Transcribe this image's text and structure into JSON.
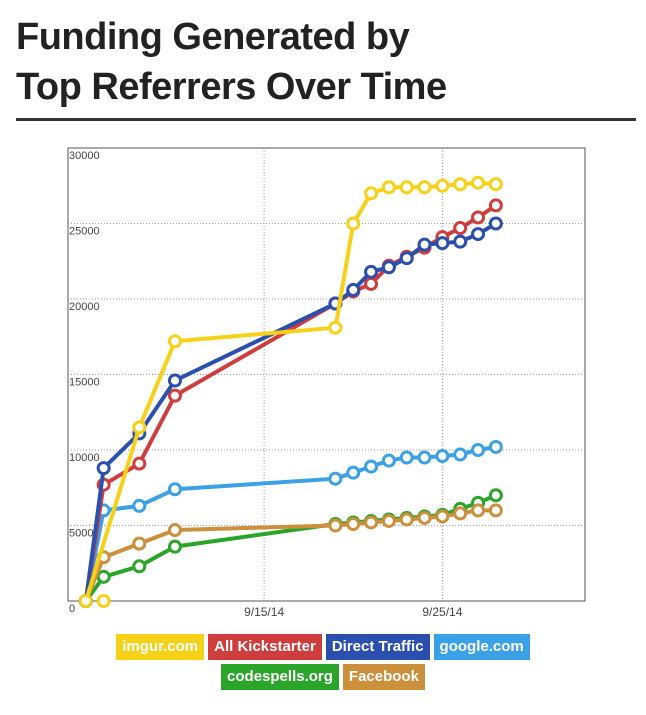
{
  "title_line1": "Funding Generated by",
  "title_line2": "Top Referrers Over Time",
  "chart_data": {
    "type": "line",
    "ylim": [
      0,
      30000
    ],
    "yticks": [
      "0",
      "5000",
      "10000",
      "15000",
      "20000",
      "25000",
      "30000"
    ],
    "xticks": [
      "9/15/14",
      "9/25/14"
    ],
    "x": [
      "9/5/14",
      "9/6/14",
      "9/7/14",
      "9/8/14",
      "9/10/14",
      "9/19/14",
      "9/20/14",
      "9/21/14",
      "9/22/14",
      "9/23/14",
      "9/24/14",
      "9/25/14",
      "9/26/14",
      "9/27/14",
      "9/28/14"
    ],
    "series": [
      {
        "name": "imgur.com",
        "color": "#f7d117",
        "values": [
          0,
          null,
          null,
          11500,
          17200,
          18100,
          25000,
          27000,
          27400,
          27400,
          27400,
          27500,
          27600,
          27700,
          27600
        ],
        "extra_points": [
          [
            "9/6/14",
            0
          ]
        ]
      },
      {
        "name": "All Kickstarter",
        "color": "#d03d3d",
        "values": [
          0,
          7700,
          null,
          9100,
          13600,
          19700,
          20500,
          21000,
          22200,
          22800,
          23400,
          24100,
          24700,
          25400,
          26200
        ]
      },
      {
        "name": "Direct Traffic",
        "color": "#2b4fae",
        "values": [
          0,
          8800,
          null,
          11100,
          14600,
          19700,
          20600,
          21800,
          22100,
          22700,
          23600,
          23700,
          23800,
          24300,
          25000
        ]
      },
      {
        "name": "google.com",
        "color": "#3aa1e6",
        "values": [
          0,
          6000,
          null,
          6300,
          7400,
          8100,
          8500,
          8900,
          9300,
          9500,
          9500,
          9600,
          9700,
          10000,
          10200
        ]
      },
      {
        "name": "codespells.org",
        "color": "#2aa52a",
        "values": [
          0,
          1600,
          null,
          2300,
          3600,
          5100,
          5200,
          5300,
          5400,
          5500,
          5600,
          5700,
          6100,
          6500,
          7000
        ]
      },
      {
        "name": "Facebook",
        "color": "#cc8f3b",
        "values": [
          0,
          2900,
          null,
          3800,
          4700,
          5000,
          5100,
          5200,
          5300,
          5400,
          5500,
          5600,
          5800,
          6000,
          6000
        ]
      }
    ]
  },
  "legend": {
    "row1": [
      {
        "label": "imgur.com",
        "color": "#f7d117"
      },
      {
        "label": "All Kickstarter",
        "color": "#d03d3d"
      },
      {
        "label": "Direct Traffic",
        "color": "#2b4fae"
      },
      {
        "label": "google.com",
        "color": "#3aa1e6"
      }
    ],
    "row2": [
      {
        "label": "codespells.org",
        "color": "#2aa52a"
      },
      {
        "label": "Facebook",
        "color": "#cc8f3b"
      }
    ]
  }
}
